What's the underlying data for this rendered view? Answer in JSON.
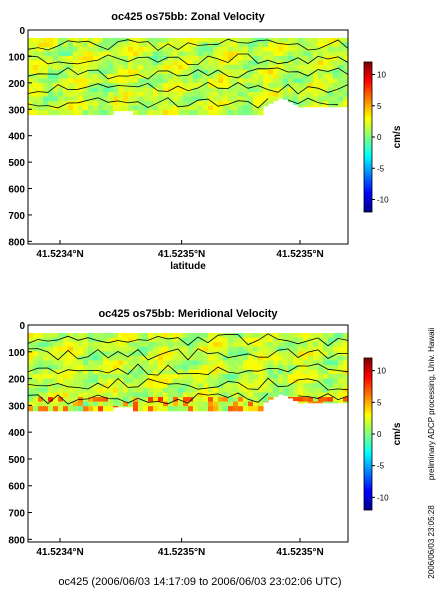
{
  "chart_data": [
    {
      "type": "heatmap",
      "title": "oc425 os75bb: Zonal Velocity",
      "xlabel": "latitude",
      "x_tick_labels": [
        "41.5234°N",
        "41.5235°N",
        "41.5235°N"
      ],
      "y_ticks": [
        0,
        100,
        200,
        300,
        400,
        500,
        600,
        700,
        800
      ],
      "ylim": [
        0,
        810
      ],
      "y_direction": "down",
      "colorbar": {
        "label": "cm/s",
        "ticks": [
          10,
          5,
          0,
          -5,
          -10
        ],
        "range": [
          -12,
          12
        ],
        "colormap": "jet"
      },
      "data_depth_range": [
        30,
        320
      ],
      "field_character": "mostly 0 to +3 cm/s (cyan-green), small patches of -2 (light blue) and +4 (yellow-green)",
      "contour_levels": [
        0
      ]
    },
    {
      "type": "heatmap",
      "title": "oc425 os75bb: Meridional Velocity",
      "xlabel": "",
      "x_tick_labels": [
        "41.5234°N",
        "41.5235°N",
        "41.5235°N"
      ],
      "y_ticks": [
        0,
        100,
        200,
        300,
        400,
        500,
        600,
        700,
        800
      ],
      "ylim": [
        0,
        810
      ],
      "y_direction": "down",
      "colorbar": {
        "label": "cm/s",
        "ticks": [
          10,
          5,
          0,
          -5,
          -10
        ],
        "range": [
          -12,
          12
        ],
        "colormap": "jet"
      },
      "data_depth_range": [
        30,
        320
      ],
      "field_character": "mostly 0 to +3 cm/s (cyan-green), small patches near bottom of +5 to +8 (yellow-orange)",
      "contour_levels": [
        0
      ]
    }
  ],
  "footer": "oc425 (2006/06/03 14:17:09 to 2006/06/03 23:02:06 UTC)",
  "side_note": "preliminary ADCP processing,   Univ. Hawaii",
  "timestamp": "2006/06/03 23:05:28"
}
